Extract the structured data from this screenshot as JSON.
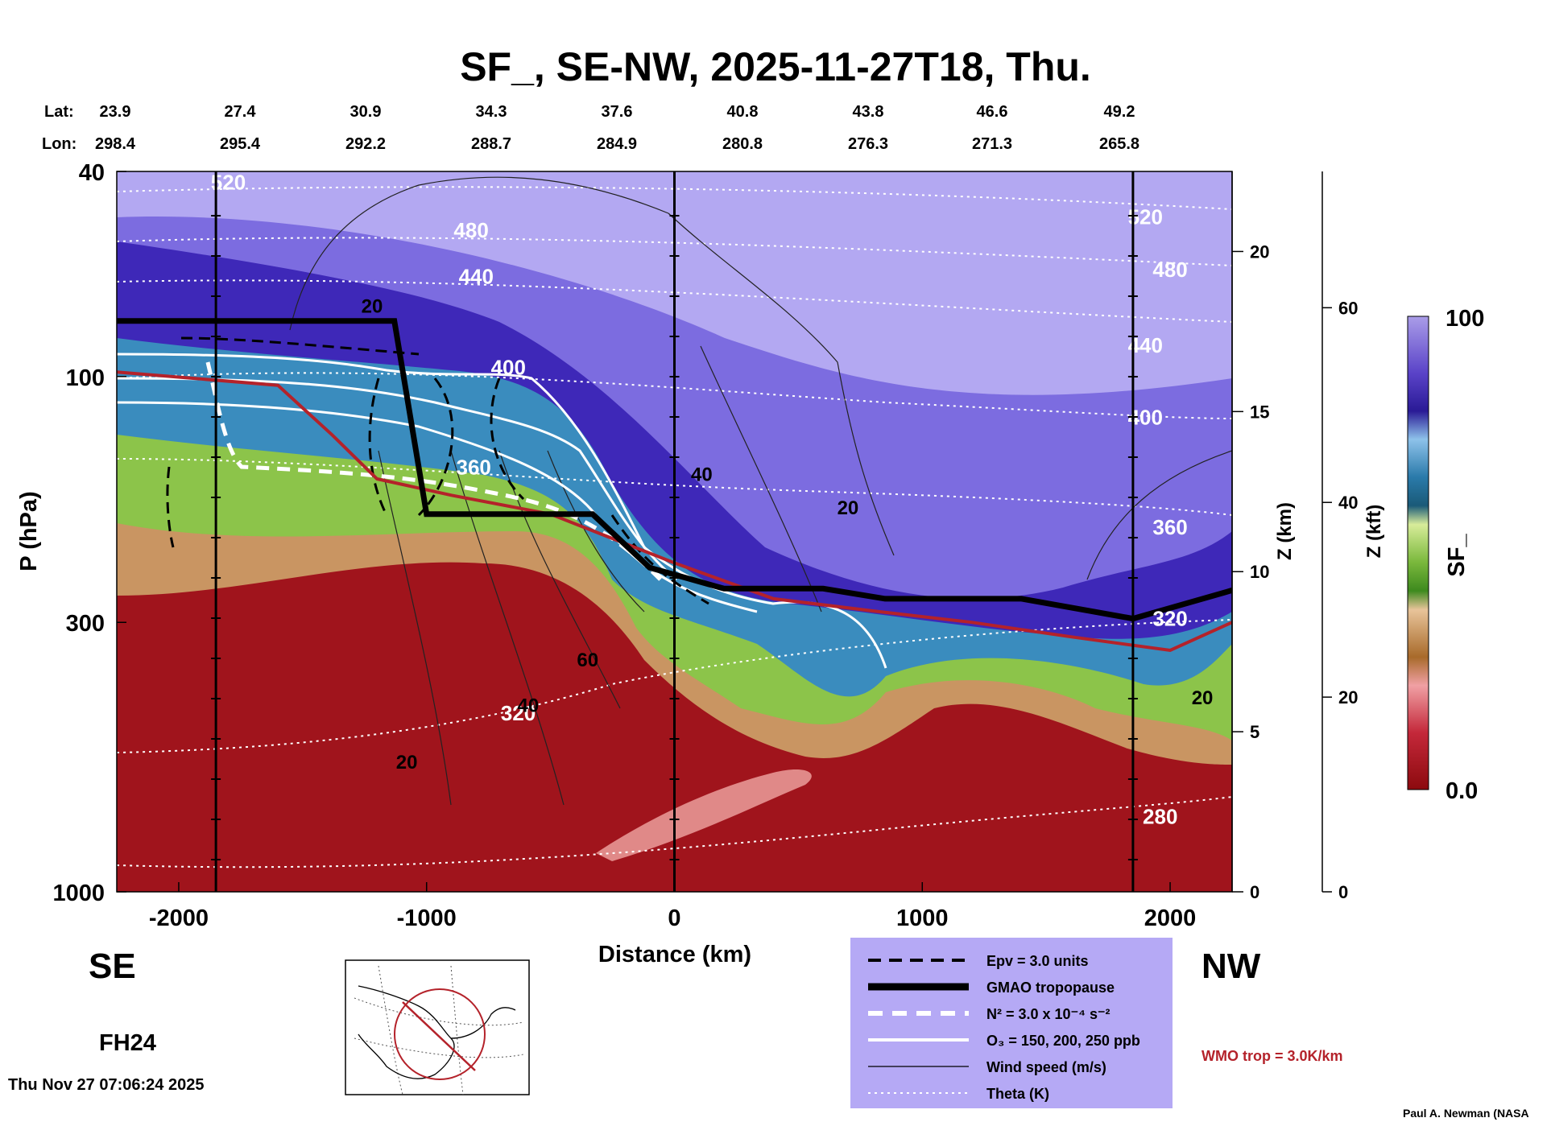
{
  "chart_data": {
    "type": "heatmap",
    "title": "SF_, SE-NW, 2025-11-27T18, Thu.",
    "xlabel": "Distance (km)",
    "ylabel": "P (hPa)",
    "y2label": "Z (km)",
    "y3label": "Z (kft)",
    "colorbar_label": "SF_",
    "xlim": [
      -2250,
      2250
    ],
    "ylim": [
      1000,
      40
    ],
    "x_ticks": [
      -2000,
      -1000,
      0,
      1000,
      2000
    ],
    "x_tick_labels": [
      "-2000",
      "-1000",
      "0",
      "1000",
      "2000"
    ],
    "p_ticks": [
      40,
      100,
      300,
      1000
    ],
    "p_tick_labels": [
      "40",
      "100",
      "300",
      "1000"
    ],
    "z_km_ticks": [
      0,
      5,
      10,
      15,
      20
    ],
    "z_km_tick_labels": [
      "0",
      "5",
      "10",
      "15",
      "20"
    ],
    "z_kft_ticks": [
      0,
      20,
      40,
      60
    ],
    "z_kft_tick_labels": [
      "0",
      "20",
      "40",
      "60"
    ],
    "colorbar_range": [
      0.0,
      100
    ],
    "colorbar_tick_labels": [
      "100",
      "0.0"
    ],
    "lat_label": "Lat:",
    "lon_label": "Lon:",
    "lat": [
      "23.9",
      "27.4",
      "30.9",
      "34.3",
      "37.6",
      "40.8",
      "43.8",
      "46.6",
      "49.2"
    ],
    "lon": [
      "298.4",
      "295.4",
      "292.2",
      "288.7",
      "284.9",
      "280.8",
      "276.3",
      "271.3",
      "265.8"
    ],
    "vertical_markers_km": [
      -1850,
      0,
      1850
    ],
    "gmao_tropopause_p": [
      [
        -2250,
        78
      ],
      [
        -1130,
        78
      ],
      [
        -1000,
        185
      ],
      [
        -330,
        185
      ],
      [
        -100,
        235
      ],
      [
        200,
        258
      ],
      [
        600,
        258
      ],
      [
        850,
        270
      ],
      [
        1400,
        270
      ],
      [
        1850,
        295
      ],
      [
        2250,
        260
      ]
    ],
    "wmo_trop_p": [
      [
        -2250,
        98
      ],
      [
        -1600,
        104
      ],
      [
        -1380,
        130
      ],
      [
        -1200,
        158
      ],
      [
        -900,
        170
      ],
      [
        -500,
        185
      ],
      [
        0,
        230
      ],
      [
        400,
        270
      ],
      [
        800,
        285
      ],
      [
        1200,
        300
      ],
      [
        1600,
        320
      ],
      [
        2000,
        340
      ],
      [
        2250,
        300
      ]
    ],
    "theta_labels": [
      {
        "x": -1800,
        "p": 42,
        "label": "520"
      },
      {
        "x": -820,
        "p": 52,
        "label": "480"
      },
      {
        "x": -800,
        "p": 64,
        "label": "440"
      },
      {
        "x": -670,
        "p": 96,
        "label": "400"
      },
      {
        "x": -810,
        "p": 150,
        "label": "360"
      },
      {
        "x": -630,
        "p": 450,
        "label": "320"
      },
      {
        "x": 1900,
        "p": 49,
        "label": "520"
      },
      {
        "x": 2000,
        "p": 62,
        "label": "480"
      },
      {
        "x": 1900,
        "p": 87,
        "label": "440"
      },
      {
        "x": 1900,
        "p": 120,
        "label": "400"
      },
      {
        "x": 2000,
        "p": 196,
        "label": "360"
      },
      {
        "x": 2000,
        "p": 295,
        "label": "320"
      },
      {
        "x": 1960,
        "p": 715,
        "label": "280"
      }
    ],
    "wind_labels": [
      {
        "x": -1220,
        "p": 73,
        "label": "20"
      },
      {
        "x": 110,
        "p": 155,
        "label": "40"
      },
      {
        "x": 700,
        "p": 180,
        "label": "20"
      },
      {
        "x": -350,
        "p": 355,
        "label": "60"
      },
      {
        "x": -590,
        "p": 435,
        "label": "40"
      },
      {
        "x": -1080,
        "p": 560,
        "label": "20"
      },
      {
        "x": 2130,
        "p": 420,
        "label": "20"
      }
    ],
    "legend": [
      {
        "style": "dashed",
        "label": "Epv = 3.0 units"
      },
      {
        "style": "thick",
        "label": "GMAO tropopause"
      },
      {
        "style": "white-dashed",
        "label": "N² = 3.0 x 10⁻⁴ s⁻²"
      },
      {
        "style": "white-solid",
        "label": "O₃ = 150, 200, 250 ppb"
      },
      {
        "style": "thin",
        "label": "Wind speed (m/s)"
      },
      {
        "style": "dotted",
        "label": "Theta (K)"
      }
    ],
    "wmo_note": "WMO trop = 3.0K/km",
    "direction_left": "SE",
    "direction_right": "NW",
    "forecast_hour": "FH24",
    "timestamp": "Thu Nov 27 07:06:24 2025",
    "credit": "Paul A. Newman (NASA"
  }
}
